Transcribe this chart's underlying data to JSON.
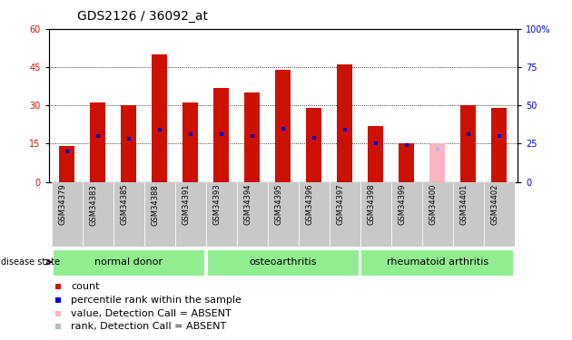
{
  "title": "GDS2126 / 36092_at",
  "samples": [
    "GSM34379",
    "GSM34383",
    "GSM34385",
    "GSM34388",
    "GSM34391",
    "GSM34393",
    "GSM34394",
    "GSM34395",
    "GSM34396",
    "GSM34397",
    "GSM34398",
    "GSM34399",
    "GSM34400",
    "GSM34401",
    "GSM34402"
  ],
  "count_values": [
    14,
    31,
    30,
    50,
    31,
    37,
    35,
    44,
    29,
    46,
    22,
    15,
    15,
    30,
    29
  ],
  "rank_values": [
    20,
    30,
    28,
    34,
    31,
    31,
    30,
    35,
    29,
    34,
    25,
    24,
    22,
    31,
    30
  ],
  "absent_count": [
    false,
    false,
    false,
    false,
    false,
    false,
    false,
    false,
    false,
    false,
    false,
    false,
    true,
    false,
    false
  ],
  "absent_rank": [
    false,
    false,
    false,
    false,
    false,
    false,
    false,
    false,
    false,
    false,
    false,
    false,
    true,
    false,
    false
  ],
  "group_labels": [
    "normal donor",
    "osteoarthritis",
    "rheumatoid arthritis"
  ],
  "group_starts": [
    0,
    5,
    10
  ],
  "group_ends": [
    4,
    9,
    14
  ],
  "group_color": "#90ee90",
  "ylim_left": [
    0,
    60
  ],
  "ylim_right": [
    0,
    100
  ],
  "yticks_left": [
    0,
    15,
    30,
    45,
    60
  ],
  "yticks_right": [
    0,
    25,
    50,
    75,
    100
  ],
  "bar_color": "#cc1100",
  "bar_color_absent": "#ffb6c1",
  "rank_color": "#0000cc",
  "rank_color_absent": "#b0b8d8",
  "bar_width": 0.5,
  "xtick_bg": "#c8c8c8",
  "title_fontsize": 10,
  "tick_fontsize": 7,
  "label_fontsize": 8,
  "legend_fontsize": 8
}
